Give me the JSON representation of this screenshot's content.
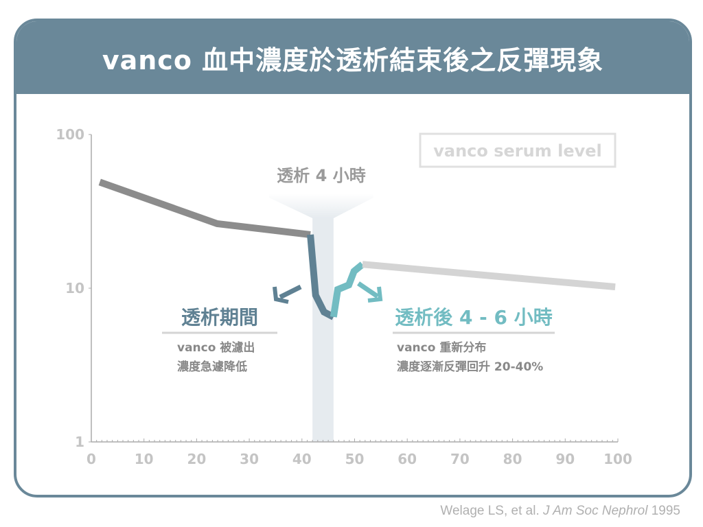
{
  "title": "vanco 血中濃度於透析結束後之反彈現象",
  "citation": {
    "authors": "Welage LS, et al.",
    "journal": "J Am Soc Nephrol",
    "year": "1995"
  },
  "colors": {
    "frame": "#6a8899",
    "pre": "#8c8c8c",
    "during": "#5f8193",
    "rebound": "#72bcc2",
    "post": "#d4d4d4",
    "band": "#e6ebef"
  },
  "chart_data": {
    "type": "line",
    "title": "vanco 血中濃度於透析結束後之反彈現象",
    "xlabel": "",
    "ylabel": "",
    "xlim": [
      0,
      100
    ],
    "ylim": [
      1,
      100
    ],
    "yscale": "log",
    "xticks": [
      "0",
      "10",
      "20",
      "30",
      "40",
      "50",
      "60",
      "70",
      "80",
      "90",
      "100"
    ],
    "yticks": [
      "1",
      "10",
      "100"
    ],
    "legend": {
      "label": "vanco serum level",
      "placement": "top-right"
    },
    "shaded_region": {
      "x": [
        42,
        46
      ],
      "label": "透析 4 小時"
    },
    "series": [
      {
        "name": "pre-dialysis",
        "color": "#8c8c8c",
        "x": [
          1.6,
          23.9,
          41.6
        ],
        "y": [
          49,
          26.3,
          22.3
        ]
      },
      {
        "name": "during dialysis",
        "color": "#5f8193",
        "x": [
          41.6,
          42.6,
          44.2,
          46.0
        ],
        "y": [
          22.3,
          9.0,
          7.0,
          6.5
        ]
      },
      {
        "name": "rebound",
        "color": "#72bcc2",
        "x": [
          46.0,
          46.8,
          48.9,
          49.9,
          51.5
        ],
        "y": [
          6.5,
          9.8,
          10.5,
          12.9,
          14.3
        ]
      },
      {
        "name": "post-dialysis",
        "color": "#d4d4d4",
        "x": [
          51.5,
          99.5
        ],
        "y": [
          14.3,
          10.2
        ]
      }
    ],
    "annotations": [
      {
        "title": "透析期間",
        "lines": [
          "vanco 被濾出",
          "濃度急遽降低"
        ]
      },
      {
        "title": "透析後 4 - 6 小時",
        "lines": [
          "vanco 重新分布",
          "濃度逐漸反彈回升 20-40%"
        ]
      }
    ]
  }
}
